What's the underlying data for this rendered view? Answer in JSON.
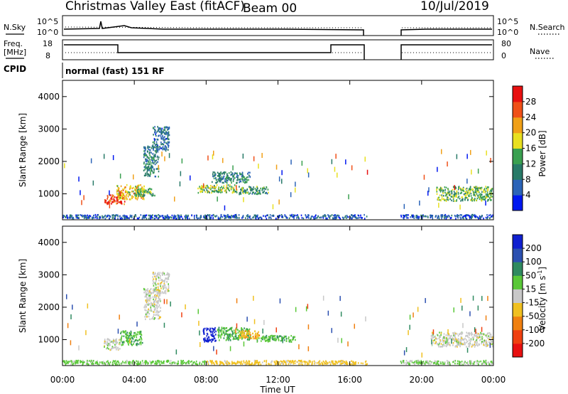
{
  "header": {
    "radar": "Christmas Valley East (fitACF)",
    "beam": "Beam 00",
    "date": "10/Jul/2019"
  },
  "panels": {
    "nsky_label": "N.Sky",
    "nsearch_label": "N.Search",
    "nsky_ticks": [
      "10^5",
      "10^0"
    ],
    "freq_label_1": "Freq.",
    "freq_label_2": "[MHz]",
    "freq_ticks": [
      "18",
      "8"
    ],
    "nave_label": "Nave",
    "nave_ticks": [
      "80",
      "0"
    ],
    "cpid_label": "CPID",
    "cpid_value": "normal (fast) 151 RF"
  },
  "chart_data": [
    {
      "type": "heatmap",
      "title": "",
      "xlabel": "Time UT",
      "ylabel": "Slant Range [km]",
      "x_ticks": [
        "00:00",
        "04:00",
        "08:00",
        "12:00",
        "16:00",
        "20:00",
        "00:00"
      ],
      "xlim_hours": [
        0,
        24
      ],
      "ylim_km": [
        200,
        4500
      ],
      "y_ticks": [
        1000,
        2000,
        3000,
        4000
      ],
      "colorbar": {
        "label": "Power [dB]",
        "range": [
          0,
          32
        ],
        "ticks": [
          "4",
          "8",
          "12",
          "16",
          "20",
          "24",
          "28"
        ],
        "colors": [
          "#0018f0",
          "#2c64b8",
          "#287a68",
          "#3aa050",
          "#e8e020",
          "#f0a018",
          "#f05018",
          "#e81010"
        ]
      },
      "gap_hours": [
        17.0,
        18.8
      ],
      "regions": [
        {
          "t0": 2.3,
          "t1": 3.5,
          "r0": 650,
          "r1": 1000,
          "value": 28
        },
        {
          "t0": 3.0,
          "t1": 4.6,
          "r0": 800,
          "r1": 1300,
          "value": 20
        },
        {
          "t0": 4.0,
          "t1": 5.2,
          "r0": 900,
          "r1": 1200,
          "value": 14
        },
        {
          "t0": 4.5,
          "t1": 5.4,
          "r0": 1500,
          "r1": 2500,
          "value": 10
        },
        {
          "t0": 5.0,
          "t1": 6.0,
          "r0": 2300,
          "r1": 3100,
          "value": 8
        },
        {
          "t0": 7.5,
          "t1": 9.8,
          "r0": 1000,
          "r1": 1300,
          "value": 16
        },
        {
          "t0": 8.3,
          "t1": 10.5,
          "r0": 1300,
          "r1": 1700,
          "value": 10
        },
        {
          "t0": 9.8,
          "t1": 11.5,
          "r0": 950,
          "r1": 1250,
          "value": 12
        },
        {
          "t0": 20.8,
          "t1": 24.0,
          "r0": 750,
          "r1": 1250,
          "value": 14
        },
        {
          "t0": 0.0,
          "t1": 17.0,
          "r0": 200,
          "r1": 380,
          "value": 6
        },
        {
          "t0": 18.8,
          "t1": 24.0,
          "r0": 200,
          "r1": 380,
          "value": 6
        }
      ]
    },
    {
      "type": "heatmap",
      "title": "",
      "xlabel": "Time UT",
      "ylabel": "Slant Range [km]",
      "x_ticks": [
        "00:00",
        "04:00",
        "08:00",
        "12:00",
        "16:00",
        "20:00",
        "00:00"
      ],
      "xlim_hours": [
        0,
        24
      ],
      "ylim_km": [
        200,
        4500
      ],
      "y_ticks": [
        1000,
        2000,
        3000,
        4000
      ],
      "colorbar": {
        "label_main": "Velocity [m s",
        "label_exp": "-1",
        "label_end": "]",
        "ticks": [
          "-200",
          "-100",
          "-50",
          "-15",
          "15",
          "50",
          "100",
          "200"
        ],
        "colors": [
          "#e81010",
          "#f04010",
          "#f08010",
          "#f0c020",
          "#c8c8c8",
          "#5ac838",
          "#2f8a60",
          "#2c50b0",
          "#1020d0"
        ]
      },
      "gap_hours": [
        17.0,
        18.8
      ],
      "regions": [
        {
          "t0": 2.3,
          "t1": 3.3,
          "r0": 650,
          "r1": 1050,
          "value": 0
        },
        {
          "t0": 3.2,
          "t1": 4.5,
          "r0": 800,
          "r1": 1300,
          "value": 40
        },
        {
          "t0": 4.5,
          "t1": 5.5,
          "r0": 1600,
          "r1": 2600,
          "value": 0
        },
        {
          "t0": 5.0,
          "t1": 6.0,
          "r0": 2400,
          "r1": 3100,
          "value": 0
        },
        {
          "t0": 7.8,
          "t1": 8.6,
          "r0": 900,
          "r1": 1400,
          "value": 250
        },
        {
          "t0": 8.6,
          "t1": 10.5,
          "r0": 950,
          "r1": 1400,
          "value": 40
        },
        {
          "t0": 9.8,
          "t1": 11.0,
          "r0": 1000,
          "r1": 1300,
          "value": -40
        },
        {
          "t0": 10.8,
          "t1": 13.0,
          "r0": 900,
          "r1": 1150,
          "value": 40
        },
        {
          "t0": 20.5,
          "t1": 24.0,
          "r0": 750,
          "r1": 1250,
          "value": 0
        },
        {
          "t0": 0.0,
          "t1": 8.0,
          "r0": 200,
          "r1": 380,
          "value": 30
        },
        {
          "t0": 8.0,
          "t1": 17.0,
          "r0": 200,
          "r1": 380,
          "value": -30
        },
        {
          "t0": 18.8,
          "t1": 24.0,
          "r0": 200,
          "r1": 380,
          "value": 20
        }
      ]
    }
  ]
}
